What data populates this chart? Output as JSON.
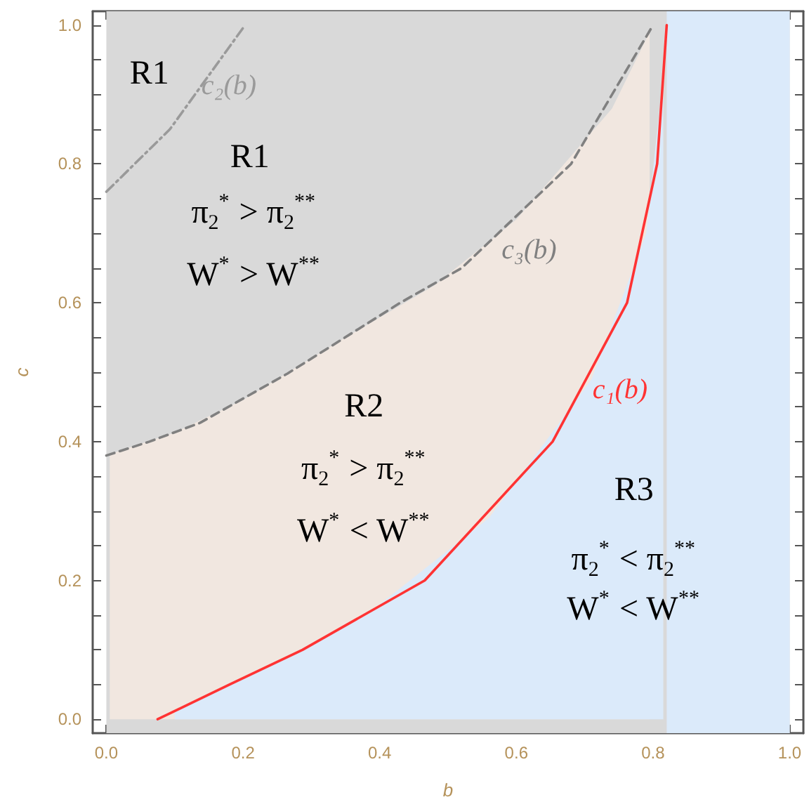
{
  "chart_data": {
    "type": "line",
    "xlabel": "b",
    "ylabel": "c",
    "xlim": [
      -0.02,
      1.02
    ],
    "ylim": [
      -0.02,
      1.02
    ],
    "xticks": [
      {
        "value": 0,
        "label": "0.0"
      },
      {
        "value": 0.05,
        "label": null
      },
      {
        "value": 0.1,
        "label": null
      },
      {
        "value": 0.15,
        "label": null
      },
      {
        "value": 0.2,
        "label": "0.2"
      },
      {
        "value": 0.25,
        "label": null
      },
      {
        "value": 0.3,
        "label": null
      },
      {
        "value": 0.35,
        "label": null
      },
      {
        "value": 0.4,
        "label": "0.4"
      },
      {
        "value": 0.45,
        "label": null
      },
      {
        "value": 0.5,
        "label": null
      },
      {
        "value": 0.55,
        "label": null
      },
      {
        "value": 0.6,
        "label": "0.6"
      },
      {
        "value": 0.65,
        "label": null
      },
      {
        "value": 0.7,
        "label": null
      },
      {
        "value": 0.75,
        "label": null
      },
      {
        "value": 0.8,
        "label": "0.8"
      },
      {
        "value": 0.85,
        "label": null
      },
      {
        "value": 0.9,
        "label": null
      },
      {
        "value": 0.95,
        "label": null
      },
      {
        "value": 1,
        "label": "1.0"
      }
    ],
    "yticks": [
      {
        "value": 0,
        "label": "0.0"
      },
      {
        "value": 0.05,
        "label": null
      },
      {
        "value": 0.1,
        "label": null
      },
      {
        "value": 0.15,
        "label": null
      },
      {
        "value": 0.2,
        "label": "0.2"
      },
      {
        "value": 0.25,
        "label": null
      },
      {
        "value": 0.3,
        "label": null
      },
      {
        "value": 0.35,
        "label": null
      },
      {
        "value": 0.4,
        "label": "0.4"
      },
      {
        "value": 0.45,
        "label": null
      },
      {
        "value": 0.5,
        "label": null
      },
      {
        "value": 0.55,
        "label": null
      },
      {
        "value": 0.6,
        "label": "0.6"
      },
      {
        "value": 0.65,
        "label": null
      },
      {
        "value": 0.7,
        "label": null
      },
      {
        "value": 0.75,
        "label": null
      },
      {
        "value": 0.8,
        "label": "0.8"
      },
      {
        "value": 0.85,
        "label": null
      },
      {
        "value": 0.9,
        "label": null
      },
      {
        "value": 0.95,
        "label": null
      },
      {
        "value": 1,
        "label": "1.0"
      }
    ],
    "grid": false,
    "legend": false,
    "series": [
      {
        "type": "area",
        "color": "#f1e7e0",
        "x": [
          0.005,
          0.1,
          0.2,
          0.35,
          0.48,
          0.6,
          0.74,
          0.795
        ],
        "values": [
          0.382,
          0.413,
          0.46,
          0.55,
          0.625,
          0.72,
          0.88,
          0.99
        ]
      },
      {
        "type": "area",
        "color": "#dbeafa",
        "x": [
          0.1,
          0.23,
          0.38,
          0.56,
          0.71,
          0.79,
          0.815
        ],
        "values": [
          0.012,
          0.073,
          0.15,
          0.29,
          0.49,
          0.7,
          0.93
        ]
      },
      {
        "name": "c₁(b)",
        "color": "#ff3333",
        "line_style": "solid",
        "x": [
          0.075,
          0.18,
          0.287,
          0.466,
          0.653,
          0.762,
          0.806,
          0.82
        ],
        "values": [
          0,
          0.05,
          0.1,
          0.2,
          0.4,
          0.6,
          0.8,
          1
        ]
      },
      {
        "name": "c₃(b)",
        "color": "#808080",
        "line_style": "dashed",
        "x": [
          0,
          0.063,
          0.137,
          0.265,
          0.43,
          0.52,
          0.68,
          0.8
        ],
        "values": [
          0.38,
          0.4,
          0.427,
          0.498,
          0.6,
          0.65,
          0.8,
          1
        ]
      },
      {
        "name": "c₂(b)",
        "color": "#9a9a9a",
        "line_style": "dotted",
        "x": [
          0,
          0.093,
          0.203
        ],
        "values": [
          0.76,
          0.85,
          1
        ]
      }
    ],
    "bands": [
      {
        "axis": "x",
        "from": 0,
        "to": 1,
        "color": "#d9d9d9"
      },
      {
        "axis": "x",
        "from": 0.82,
        "to": 1,
        "color": "#dbeafa"
      }
    ],
    "annotations": [
      "R1",
      "R1",
      "π$_{2}$$^{*}$ > π$_{2}$$^{**}$",
      "W$^{*}$ > W$^{**}$",
      "R2",
      "π$_{2}$$^{*}$ > π$_{2}$$^{**}$",
      "W$^{*}$ < W$^{**}$",
      "R3",
      "π$_{2}$$^{*}$ < π$_{2}$$^{**}$",
      "W$^{*}$ < W$^{**}$"
    ]
  }
}
